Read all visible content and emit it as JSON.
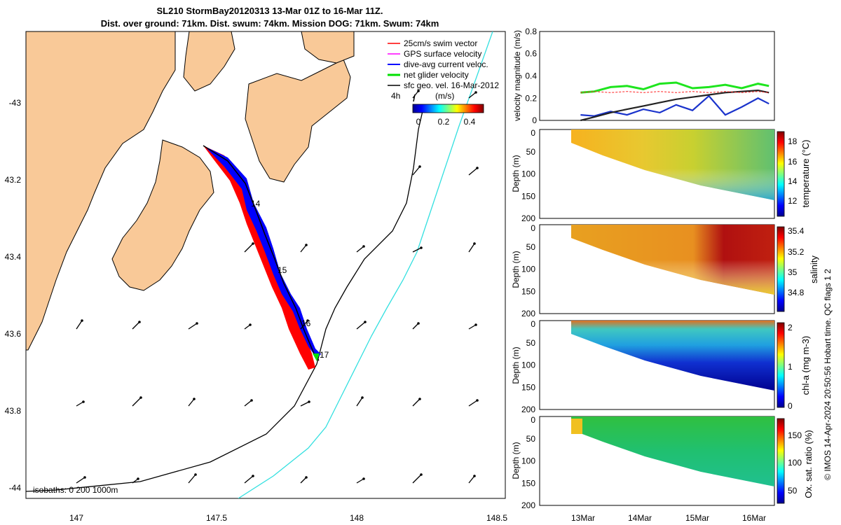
{
  "title": {
    "line1": "SL210 StormBay20120313 13-Mar 01Z to 16-Mar 11Z.",
    "line2": "Dist. over ground: 71km. Dist. swum: 74km. Mission DOG: 71km. Swum: 74km"
  },
  "footer": "© IMOS 14-Apr-2024 20:50:56 Hobart time. QC flags 1  2",
  "colors": {
    "land": "#f9c998",
    "coast": "#000000",
    "isobath_200": "#000000",
    "isobath_1000": "#33e0e0",
    "track_swim": "#ff0000",
    "track_gps": "#ff00ff",
    "track_dive": "#0000ff",
    "track_net": "#00e000",
    "speed_green": "#1ee51e",
    "speed_blue": "#1a33cc",
    "speed_black": "#222222",
    "speed_red": "#ff2020"
  },
  "map": {
    "x_ticks": [
      "147",
      "147.5",
      "148",
      "148.5"
    ],
    "y_ticks": [
      "-43",
      "43.2",
      "43.4",
      "43.6",
      "43.8",
      "-44"
    ],
    "day_labels": [
      "14",
      "15",
      "16",
      "17"
    ],
    "isobath_text": "isobaths: 0   200  1000m",
    "colorbar_label": "(m/s)",
    "colorbar_ticks": [
      "0",
      "0.2",
      "0.4"
    ],
    "scale_label": "4h",
    "legend": [
      {
        "label": "25cm/s swim vector",
        "color": "#ff0000"
      },
      {
        "label": "GPS surface velocity",
        "color": "#ff00ff"
      },
      {
        "label": "dive-avg current veloc.",
        "color": "#0000ff"
      },
      {
        "label": "net glider velocity",
        "color": "#00e000"
      },
      {
        "label": "sfc geo. vel. 16-Mar-2012",
        "color": "#000000"
      }
    ]
  },
  "chart_data": [
    {
      "type": "line",
      "title": "velocity magnitude",
      "ylabel": "velocity magnitude (m/s)",
      "ylim": [
        0,
        0.8
      ],
      "yticks": [
        "0",
        "0.2",
        "0.4",
        "0.6",
        "0.8"
      ],
      "x": [
        13.05,
        13.3,
        13.6,
        13.9,
        14.2,
        14.5,
        14.8,
        15.1,
        15.4,
        15.7,
        16.0,
        16.3,
        16.5
      ],
      "series": [
        {
          "name": "net glider velocity",
          "color": "#1ee51e",
          "values": [
            0.25,
            0.26,
            0.3,
            0.31,
            0.28,
            0.33,
            0.34,
            0.29,
            0.3,
            0.32,
            0.29,
            0.33,
            0.31
          ]
        },
        {
          "name": "dive-avg current",
          "color": "#1a33cc",
          "values": [
            0.05,
            0.04,
            0.08,
            0.05,
            0.1,
            0.07,
            0.14,
            0.09,
            0.22,
            0.05,
            0.12,
            0.2,
            0.15
          ]
        },
        {
          "name": "sfc geo. vel.",
          "color": "#222222",
          "values": [
            0.0,
            0.03,
            0.07,
            0.1,
            0.13,
            0.16,
            0.19,
            0.21,
            0.23,
            0.25,
            0.26,
            0.27,
            0.25
          ]
        },
        {
          "name": "swim vector",
          "color": "#ff2020",
          "values": [
            0.25,
            0.26,
            0.25,
            0.26,
            0.25,
            0.26,
            0.25,
            0.26,
            0.25,
            0.26,
            0.25,
            0.26,
            0.25
          ]
        }
      ]
    },
    {
      "type": "heatmap",
      "title": "temperature",
      "ylabel": "Depth (m)",
      "yticks": [
        "0",
        "50",
        "100",
        "150",
        "200"
      ],
      "colorbar_label": "temperature (°C)",
      "colorbar_ticks": [
        "18",
        "16",
        "14",
        "12"
      ]
    },
    {
      "type": "heatmap",
      "title": "salinity",
      "ylabel": "Depth (m)",
      "yticks": [
        "0",
        "50",
        "100",
        "150",
        "200"
      ],
      "colorbar_label": "salinity",
      "colorbar_ticks": [
        "35.4",
        "35.2",
        "35",
        "34.8"
      ]
    },
    {
      "type": "heatmap",
      "title": "chl-a",
      "ylabel": "Depth (m)",
      "yticks": [
        "0",
        "50",
        "100",
        "150",
        "200"
      ],
      "colorbar_label": "chl-a (mg m-3)",
      "colorbar_ticks": [
        "2",
        "1",
        "0"
      ]
    },
    {
      "type": "heatmap",
      "title": "oxygen saturation",
      "ylabel": "Depth (m)",
      "yticks": [
        "0",
        "50",
        "100",
        "150",
        "200"
      ],
      "colorbar_label": "Ox. sat. ratio (%)",
      "colorbar_ticks": [
        "150",
        "100",
        "50"
      ],
      "x_ticks": [
        "13Mar",
        "14Mar",
        "15Mar",
        "16Mar"
      ]
    }
  ]
}
